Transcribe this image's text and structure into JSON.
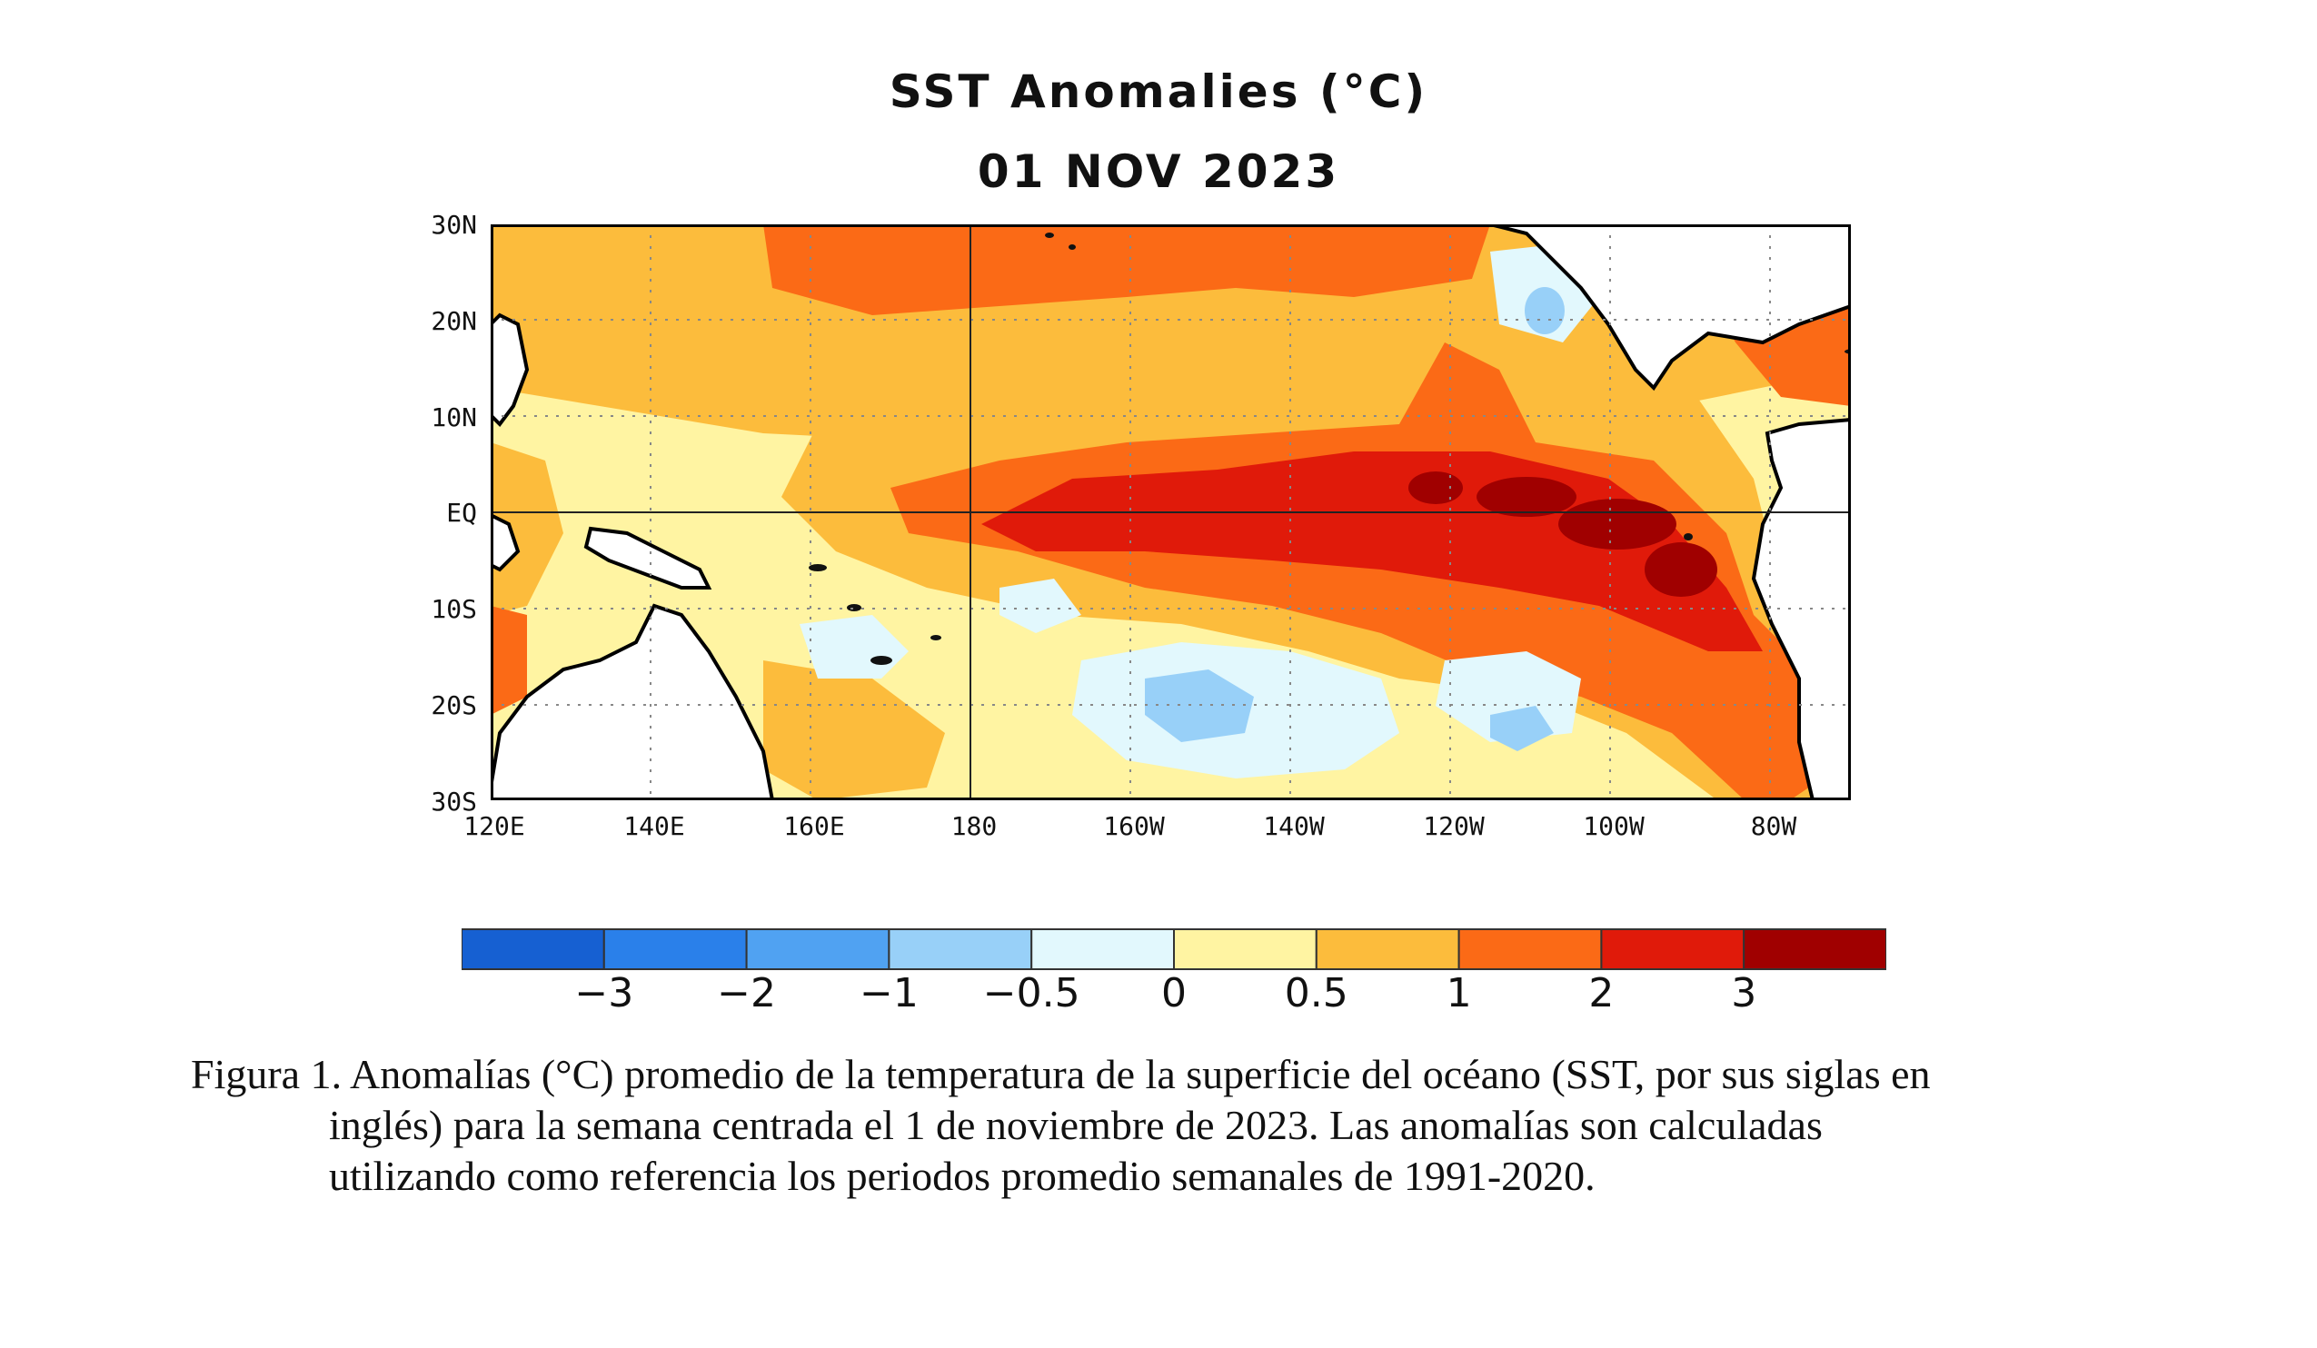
{
  "title": "SST Anomalies (°C)",
  "date": "01 NOV 2023",
  "map": {
    "lat_labels": [
      "30N",
      "20N",
      "10N",
      "EQ",
      "10S",
      "20S",
      "30S"
    ],
    "lon_labels": [
      "120E",
      "140E",
      "160E",
      "180",
      "160W",
      "140W",
      "120W",
      "100W",
      "80W"
    ],
    "lat_range": [
      -30,
      30
    ],
    "lon_range": [
      120,
      290
    ],
    "grid": "dotted",
    "reference_lines": [
      "EQ",
      "180"
    ]
  },
  "colorbar": {
    "colors": [
      "#1660d2",
      "#2a80ea",
      "#50a2f2",
      "#98d0f8",
      "#e2f8fd",
      "#fff4a2",
      "#fcbc3c",
      "#fb6a16",
      "#e01a0a",
      "#a00000"
    ],
    "labels": [
      "−3",
      "−2",
      "−1",
      "−0.5",
      "0",
      "0.5",
      "1",
      "2",
      "3"
    ]
  },
  "caption": {
    "line1": "Figura 1. Anomalías (°C) promedio de la temperatura de la superficie del océano (SST, por sus siglas en",
    "line2": "inglés) para la semana centrada el 1 de noviembre de 2023. Las anomalías son calculadas",
    "line3": "utilizando como referencia los periodos promedio semanales de 1991-2020."
  }
}
